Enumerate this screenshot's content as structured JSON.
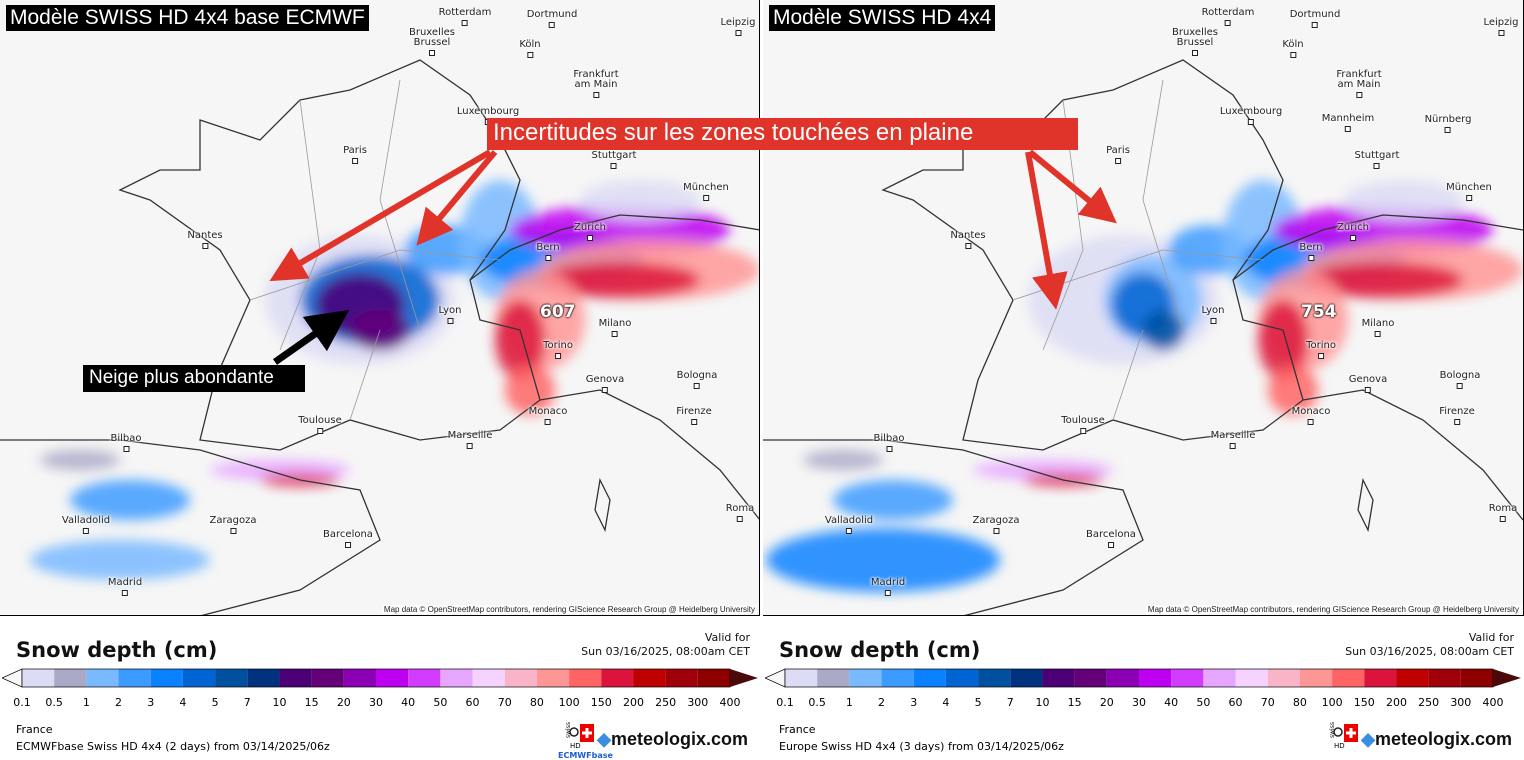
{
  "left_map": {
    "title": "Modèle SWISS HD 4x4 base ECMWF",
    "max_value": "607",
    "credit": "Map data © OpenStreetMap contributors, rendering GIScience Research Group @ Heidelberg University",
    "legend": {
      "title": "Snow depth (cm)",
      "valid_label": "Valid for",
      "valid_time": "Sun 03/16/2025, 08:00am CET",
      "region": "France",
      "run": "ECMWFbase Swiss HD 4x4 (2 days) from  03/14/2025/06z",
      "logo": "meteologix.com",
      "sublogo": "ECMWFbase"
    }
  },
  "right_map": {
    "title": "Modèle SWISS HD 4x4",
    "max_value": "754",
    "credit": "Map data © OpenStreetMap contributors, rendering GIScience Research Group @ Heidelberg University",
    "legend": {
      "title": "Snow depth (cm)",
      "valid_label": "Valid for",
      "valid_time": "Sun 03/16/2025, 08:00am CET",
      "region": "France",
      "run": "Europe Swiss HD 4x4 (3 days) from  03/14/2025/06z",
      "logo": "meteologix.com"
    }
  },
  "cities": [
    "Rotterdam",
    "Dortmund",
    "Leipzig",
    "Bruxelles\nBrussel",
    "Köln",
    "Frankfurt\nam Main",
    "Luxembourg",
    "Paris",
    "Stuttgart",
    "München",
    "Nantes",
    "Zürich",
    "Bern",
    "Lyon",
    "Milano",
    "Torino",
    "Genova",
    "Bologna",
    "Monaco",
    "Firenze",
    "Toulouse",
    "Marseille",
    "Bilbao",
    "Valladolid",
    "Zaragoza",
    "Barcelona",
    "Madrid",
    "Roma",
    "Mannheim",
    "Nürnberg"
  ],
  "annotations": {
    "uncertainty": "Incertitudes sur les zones touchées en plaine",
    "heavier_snow": "Neige plus abondante"
  },
  "scale": {
    "ticks": [
      "0.1",
      "0.5",
      "1",
      "2",
      "3",
      "4",
      "5",
      "7",
      "10",
      "15",
      "20",
      "30",
      "40",
      "50",
      "60",
      "70",
      "80",
      "100",
      "150",
      "200",
      "250",
      "300",
      "400"
    ],
    "colors": [
      "#dcdcf5",
      "#aaaac8",
      "#78b9ff",
      "#3c9bff",
      "#0a82ff",
      "#0064d2",
      "#0050a0",
      "#003280",
      "#4b0078",
      "#640078",
      "#8c00b4",
      "#be00f0",
      "#d23cff",
      "#e6a5ff",
      "#f5d2ff",
      "#fab4c8",
      "#ff9696",
      "#ff6464",
      "#dc143c",
      "#be0000",
      "#a0000a",
      "#8c0000"
    ],
    "under_color": "#f8f8f8",
    "over_color": "#4b0a0a"
  }
}
